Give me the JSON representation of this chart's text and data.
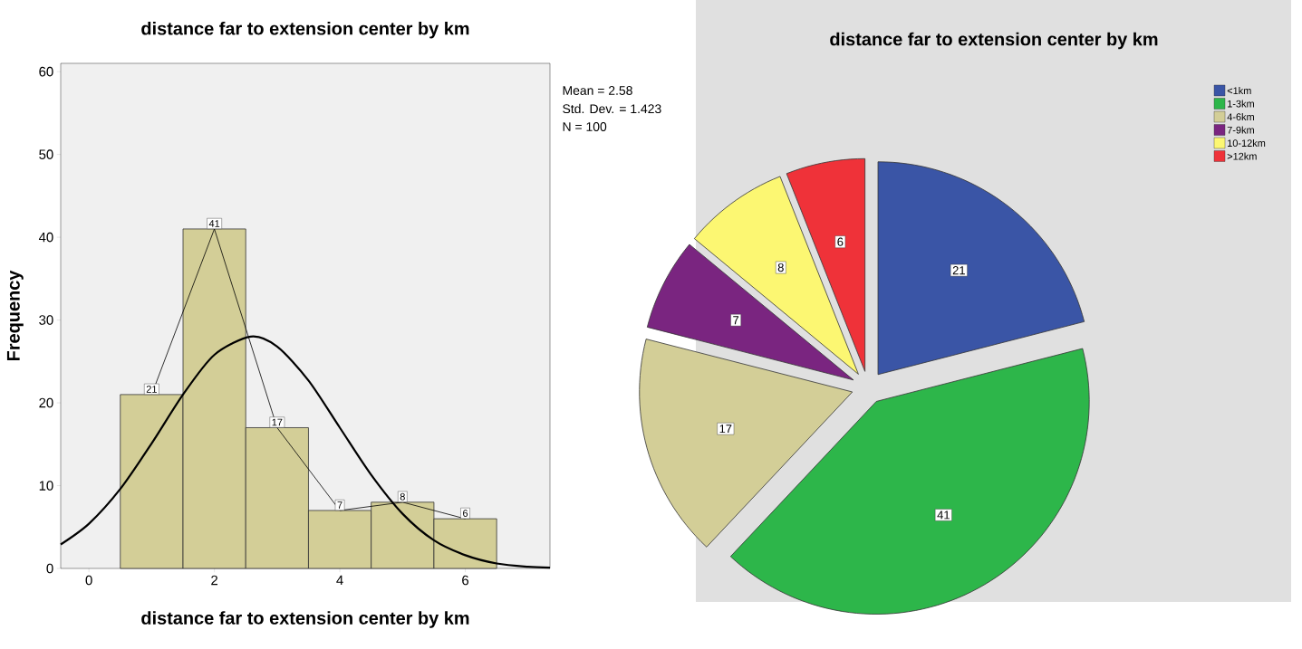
{
  "chart_data": [
    {
      "type": "histogram",
      "title": "distance far to extension center by km",
      "xlabel": "distance far to extension center by km",
      "ylabel": "Frequency",
      "bins": [
        0.5,
        1.5,
        2.5,
        3.5,
        4.5,
        5.5,
        6.5
      ],
      "values": [
        21,
        41,
        17,
        7,
        8,
        6
      ],
      "color": "#d3ce97",
      "value_labels": [
        "21",
        "41",
        "17",
        "7",
        "8",
        "6"
      ],
      "xlim": [
        -0.45,
        7.35
      ],
      "ylim": [
        0,
        61
      ],
      "xticks": [
        0,
        2,
        4,
        6
      ],
      "yticks": [
        0,
        10,
        20,
        30,
        40,
        50,
        60
      ],
      "series": [
        {
          "type": "line",
          "color": "#000000",
          "x": [
            1,
            2,
            3,
            4,
            5,
            6
          ],
          "values": [
            21,
            41,
            17,
            7,
            8,
            6
          ]
        },
        {
          "type": "line",
          "color": "#000000",
          "x": [
            -0.45,
            0,
            0.5,
            1,
            1.5,
            2,
            2.58,
            3,
            3.5,
            4,
            4.5,
            5,
            5.5,
            6,
            6.5,
            7,
            7.35
          ],
          "values": [
            2.9,
            5.4,
            9.6,
            15.1,
            21.0,
            25.8,
            28.0,
            26.8,
            22.7,
            17.0,
            11.3,
            6.6,
            3.4,
            1.6,
            0.6,
            0.2,
            0.1
          ]
        }
      ],
      "annotations": [
        "Mean = 2.58",
        "Std. Dev. = 1.423",
        "N = 100"
      ]
    },
    {
      "type": "pie",
      "title": "distance far to extension center by km",
      "categories": [
        "<1km",
        "1-3km",
        "4-6km",
        "7-9km",
        "10-12km",
        ">12km"
      ],
      "values": [
        21,
        41,
        17,
        7,
        8,
        6
      ],
      "colors": [
        "#3a55a6",
        "#2db64a",
        "#d3ce97",
        "#7a2580",
        "#fcf772",
        "#ef3239"
      ],
      "data_labels": true,
      "legend": "top right"
    }
  ]
}
